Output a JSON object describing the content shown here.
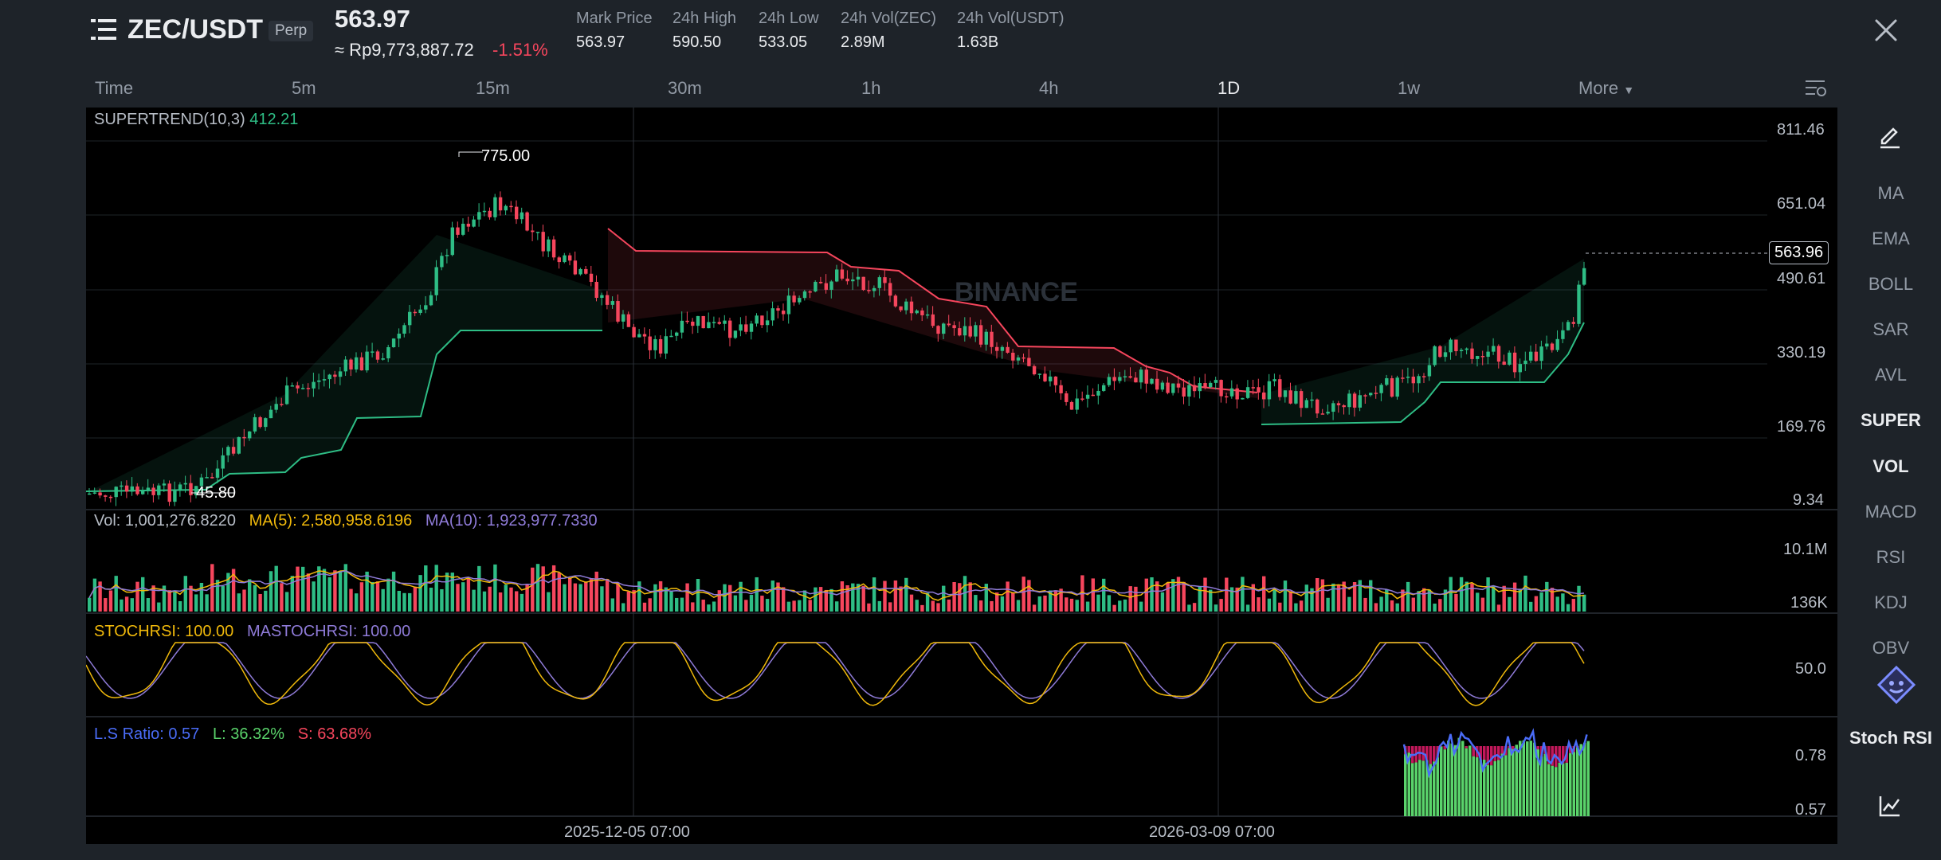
{
  "header": {
    "pair": "ZEC/USDT",
    "badge": "Perp",
    "last_price": "563.97",
    "converted_price": "≈ Rp9,773,887.72",
    "change_pct": "-1.51%",
    "stats": [
      {
        "label": "Mark Price",
        "value": "563.97"
      },
      {
        "label": "24h High",
        "value": "590.50"
      },
      {
        "label": "24h Low",
        "value": "533.05"
      },
      {
        "label": "24h Vol(ZEC)",
        "value": "2.89M"
      },
      {
        "label": "24h Vol(USDT)",
        "value": "1.63B"
      }
    ]
  },
  "timeframes": [
    "Time",
    "5m",
    "15m",
    "30m",
    "1h",
    "4h",
    "1D",
    "1w",
    "More"
  ],
  "active_timeframe": "1D",
  "watermark": "BINANCE",
  "main_panel": {
    "indicator_name": "SUPERTREND(10,3)",
    "indicator_value": "412.21",
    "price_axis": [
      "811.46",
      "651.04",
      "490.61",
      "330.19",
      "169.76",
      "9.34"
    ],
    "current_price_tag": "563.96",
    "high_marker": "775.00",
    "low_marker": "45.80"
  },
  "volume_panel": {
    "vol_label": "Vol: 1,001,276.8220",
    "ma5_label": "MA(5): 2,580,958.6196",
    "ma10_label": "MA(10): 1,923,977.7330",
    "axis": [
      "10.1M",
      "136K"
    ]
  },
  "stochrsi_panel": {
    "k_label": "STOCHRSI: 100.00",
    "d_label": "MASTOCHRSI: 100.00",
    "axis": [
      "50.0"
    ]
  },
  "ls_panel": {
    "ratio_label": "L.S Ratio: 0.57",
    "long_label": "L: 36.32%",
    "short_label": "S: 63.68%",
    "axis": [
      "0.78",
      "0.57"
    ]
  },
  "date_axis": [
    "2025-12-05 07:00",
    "2026-03-09 07:00"
  ],
  "sidebar": {
    "indicators": [
      "MA",
      "EMA",
      "BOLL",
      "SAR",
      "AVL",
      "SUPER",
      "VOL",
      "MACD",
      "RSI",
      "KDJ",
      "OBV",
      "Stoch RSI"
    ],
    "active": [
      "SUPER",
      "VOL",
      "Stoch RSI"
    ]
  },
  "colors": {
    "up": "#2ebd85",
    "down": "#f6465d",
    "ma5": "#f0b90b",
    "ma10": "#8f7bd8",
    "background": "#000000",
    "panel": "#1e2329",
    "ls_line": "#4a6cf7"
  },
  "icons": {
    "menu": "list-menu-icon",
    "close": "close-icon",
    "settings": "chart-settings-icon",
    "draw": "pencil-icon",
    "assistant": "robot-icon",
    "chart_type": "line-chart-icon"
  }
}
